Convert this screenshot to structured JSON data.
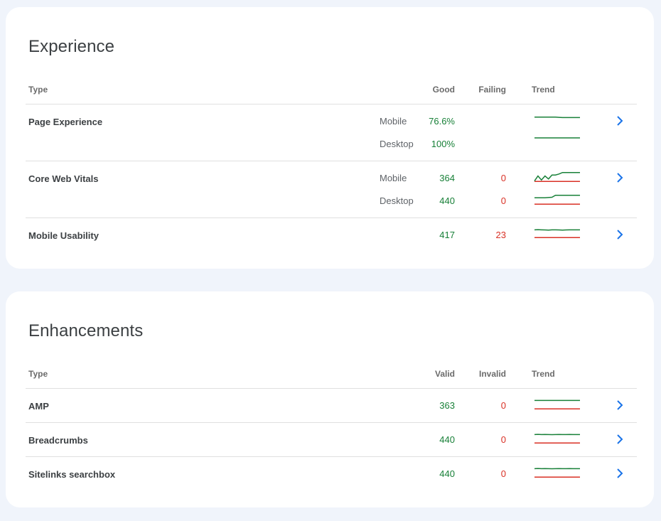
{
  "colors": {
    "good": "#188038",
    "bad": "#d93025",
    "accent": "#1a73e8"
  },
  "experience": {
    "title": "Experience",
    "headers": {
      "type": "Type",
      "good": "Good",
      "failing": "Failing",
      "trend": "Trend"
    },
    "rows": [
      {
        "name": "Page Experience",
        "subs": [
          {
            "device": "Mobile",
            "good": "76.6%",
            "failing": "",
            "trend_good": [
              0.8,
              0.8,
              0.8,
              0.8,
              0.8,
              0.8,
              0.8,
              0.78,
              0.76,
              0.76,
              0.76,
              0.76,
              0.76,
              0.76
            ],
            "trend_bad": null
          },
          {
            "device": "Desktop",
            "good": "100%",
            "failing": "",
            "trend_good": [
              1,
              1,
              1,
              1,
              1,
              1,
              1,
              1,
              1,
              1,
              1,
              1,
              1,
              1
            ],
            "trend_bad": null
          }
        ]
      },
      {
        "name": "Core Web Vitals",
        "subs": [
          {
            "device": "Mobile",
            "good": "364",
            "failing": "0",
            "trend_good": [
              0.1,
              0.6,
              0.2,
              0.6,
              0.3,
              0.7,
              0.7,
              0.8,
              0.95,
              0.95,
              0.95,
              0.95,
              0.95,
              0.95
            ],
            "trend_bad": [
              0.05,
              0.05,
              0.05,
              0.05,
              0.05,
              0.05,
              0.05,
              0.05,
              0.05,
              0.05,
              0.05,
              0.05,
              0.05,
              0.05
            ]
          },
          {
            "device": "Desktop",
            "good": "440",
            "failing": "0",
            "trend_good": [
              0.7,
              0.7,
              0.7,
              0.7,
              0.72,
              0.75,
              0.95,
              0.95,
              0.95,
              0.95,
              0.95,
              0.95,
              0.95,
              0.95
            ],
            "trend_bad": [
              0.05,
              0.05,
              0.05,
              0.05,
              0.05,
              0.05,
              0.05,
              0.05,
              0.05,
              0.05,
              0.05,
              0.05,
              0.05,
              0.05
            ]
          }
        ]
      },
      {
        "name": "Mobile Usability",
        "subs": [
          {
            "device": "",
            "good": "417",
            "failing": "23",
            "trend_good": [
              0.9,
              0.92,
              0.9,
              0.89,
              0.88,
              0.9,
              0.9,
              0.89,
              0.88,
              0.89,
              0.9,
              0.9,
              0.9,
              0.9
            ],
            "trend_bad": [
              0.12,
              0.12,
              0.12,
              0.12,
              0.12,
              0.12,
              0.12,
              0.12,
              0.12,
              0.12,
              0.12,
              0.12,
              0.12,
              0.12
            ]
          }
        ]
      }
    ]
  },
  "enhancements": {
    "title": "Enhancements",
    "headers": {
      "type": "Type",
      "good": "Valid",
      "failing": "Invalid",
      "trend": "Trend"
    },
    "rows": [
      {
        "name": "AMP",
        "subs": [
          {
            "device": "",
            "good": "363",
            "failing": "0",
            "trend_good": [
              0.9,
              0.9,
              0.9,
              0.9,
              0.9,
              0.9,
              0.9,
              0.9,
              0.9,
              0.9,
              0.9,
              0.9,
              0.9,
              0.9
            ],
            "trend_bad": [
              0.05,
              0.05,
              0.05,
              0.05,
              0.05,
              0.05,
              0.05,
              0.05,
              0.05,
              0.05,
              0.05,
              0.05,
              0.05,
              0.05
            ]
          }
        ]
      },
      {
        "name": "Breadcrumbs",
        "subs": [
          {
            "device": "",
            "good": "440",
            "failing": "0",
            "trend_good": [
              0.9,
              0.92,
              0.9,
              0.91,
              0.9,
              0.89,
              0.9,
              0.91,
              0.9,
              0.9,
              0.91,
              0.9,
              0.9,
              0.9
            ],
            "trend_bad": [
              0.05,
              0.05,
              0.05,
              0.05,
              0.05,
              0.05,
              0.05,
              0.05,
              0.05,
              0.05,
              0.05,
              0.05,
              0.05,
              0.05
            ]
          }
        ]
      },
      {
        "name": "Sitelinks searchbox",
        "subs": [
          {
            "device": "",
            "good": "440",
            "failing": "0",
            "trend_good": [
              0.9,
              0.92,
              0.9,
              0.91,
              0.9,
              0.89,
              0.9,
              0.91,
              0.9,
              0.9,
              0.91,
              0.9,
              0.9,
              0.9
            ],
            "trend_bad": [
              0.05,
              0.05,
              0.05,
              0.05,
              0.05,
              0.05,
              0.05,
              0.05,
              0.05,
              0.05,
              0.05,
              0.05,
              0.05,
              0.05
            ]
          }
        ]
      }
    ]
  }
}
